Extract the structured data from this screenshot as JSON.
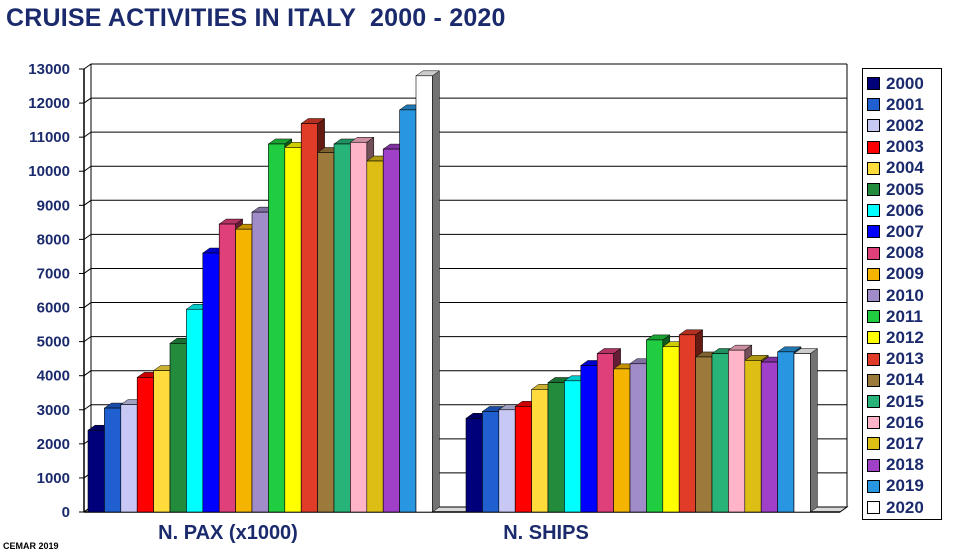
{
  "title": "CRUISE ACTIVITIES IN ITALY  2000 - 2020",
  "footer": "CEMAR 2019",
  "chart_data": {
    "type": "bar",
    "title": "CRUISE ACTIVITIES IN ITALY  2000 - 2020",
    "categories": [
      "N. PAX (x1000)",
      "N. SHIPS"
    ],
    "ylim": [
      0,
      13000
    ],
    "yticks": [
      "0",
      "1000",
      "2000",
      "3000",
      "4000",
      "5000",
      "6000",
      "7000",
      "8000",
      "9000",
      "10000",
      "11000",
      "12000",
      "13000"
    ],
    "grid": true,
    "legend_position": "right",
    "series": [
      {
        "name": "2000",
        "color": "#00007a",
        "values": [
          2400,
          2750
        ]
      },
      {
        "name": "2001",
        "color": "#1f5fcf",
        "values": [
          3050,
          2950
        ]
      },
      {
        "name": "2002",
        "color": "#c8c8f4",
        "values": [
          3150,
          3000
        ]
      },
      {
        "name": "2003",
        "color": "#ff0000",
        "values": [
          3950,
          3100
        ]
      },
      {
        "name": "2004",
        "color": "#ffdc3c",
        "values": [
          4150,
          3600
        ]
      },
      {
        "name": "2005",
        "color": "#228b3c",
        "values": [
          4950,
          3800
        ]
      },
      {
        "name": "2006",
        "color": "#00ffff",
        "values": [
          5950,
          3850
        ]
      },
      {
        "name": "2007",
        "color": "#0000ff",
        "values": [
          7600,
          4300
        ]
      },
      {
        "name": "2008",
        "color": "#e0407a",
        "values": [
          8450,
          4650
        ]
      },
      {
        "name": "2009",
        "color": "#f5b400",
        "values": [
          8300,
          4200
        ]
      },
      {
        "name": "2010",
        "color": "#a08cc8",
        "values": [
          8800,
          4350
        ]
      },
      {
        "name": "2011",
        "color": "#20cc40",
        "values": [
          10800,
          5050
        ]
      },
      {
        "name": "2012",
        "color": "#ffff00",
        "values": [
          10700,
          4850
        ]
      },
      {
        "name": "2013",
        "color": "#e03c28",
        "values": [
          11400,
          5200
        ]
      },
      {
        "name": "2014",
        "color": "#9c7a3c",
        "values": [
          10550,
          4550
        ]
      },
      {
        "name": "2015",
        "color": "#28b478",
        "values": [
          10800,
          4650
        ]
      },
      {
        "name": "2016",
        "color": "#ffb4c8",
        "values": [
          10850,
          4750
        ]
      },
      {
        "name": "2017",
        "color": "#dcbe14",
        "values": [
          10300,
          4450
        ]
      },
      {
        "name": "2018",
        "color": "#a040c8",
        "values": [
          10650,
          4400
        ]
      },
      {
        "name": "2019",
        "color": "#2896e0",
        "values": [
          11800,
          4700
        ]
      },
      {
        "name": "2020",
        "color": "#ffffff",
        "values": [
          12800,
          4650
        ]
      }
    ]
  }
}
